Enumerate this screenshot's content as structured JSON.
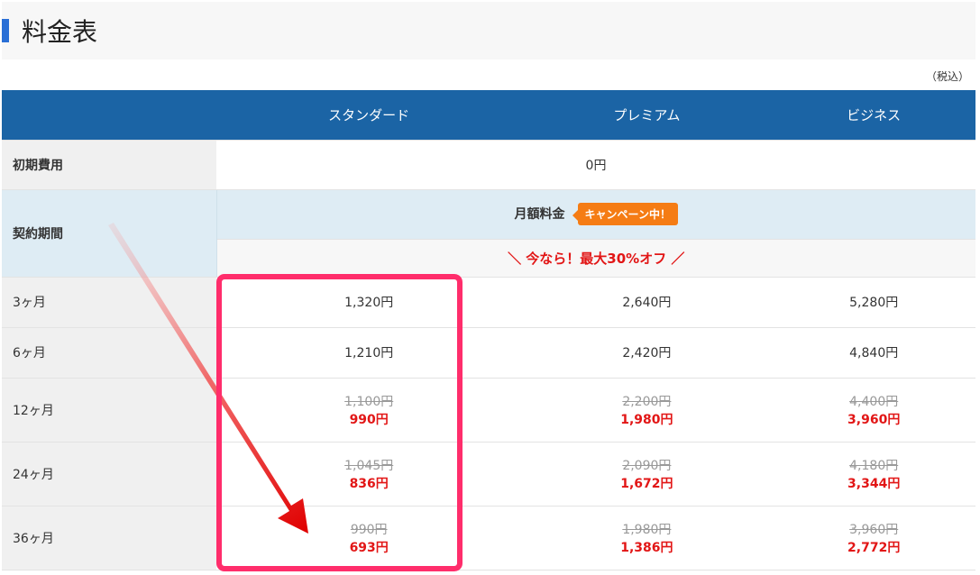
{
  "title": "料金表",
  "tax_note": "（税込）",
  "plans": [
    "スタンダード",
    "プレミアム",
    "ビジネス"
  ],
  "initial": {
    "label": "初期費用",
    "value": "0円"
  },
  "contract": {
    "label": "契約期間",
    "monthly_label": "月額料金",
    "campaign_badge": "キャンペーン中！",
    "promo": "＼ 今なら！最大30%オフ ／"
  },
  "rows": [
    {
      "period": "3ヶ月",
      "prices": [
        {
          "price": "1,320円"
        },
        {
          "price": "2,640円"
        },
        {
          "price": "5,280円"
        }
      ]
    },
    {
      "period": "6ヶ月",
      "prices": [
        {
          "price": "1,210円"
        },
        {
          "price": "2,420円"
        },
        {
          "price": "4,840円"
        }
      ]
    },
    {
      "period": "12ヶ月",
      "prices": [
        {
          "old": "1,100円",
          "price": "990円"
        },
        {
          "old": "2,200円",
          "price": "1,980円"
        },
        {
          "old": "4,400円",
          "price": "3,960円"
        }
      ]
    },
    {
      "period": "24ヶ月",
      "prices": [
        {
          "old": "1,045円",
          "price": "836円"
        },
        {
          "old": "2,090円",
          "price": "1,672円"
        },
        {
          "old": "4,180円",
          "price": "3,344円"
        }
      ]
    },
    {
      "period": "36ヶ月",
      "prices": [
        {
          "old": "990円",
          "price": "693円"
        },
        {
          "old": "1,980円",
          "price": "1,386円"
        },
        {
          "old": "3,960円",
          "price": "2,772円"
        }
      ]
    }
  ],
  "colors": {
    "header": "#1b64a5",
    "highlight": "#ff2d6b",
    "discount": "#e21616",
    "badge": "#f57c14"
  }
}
